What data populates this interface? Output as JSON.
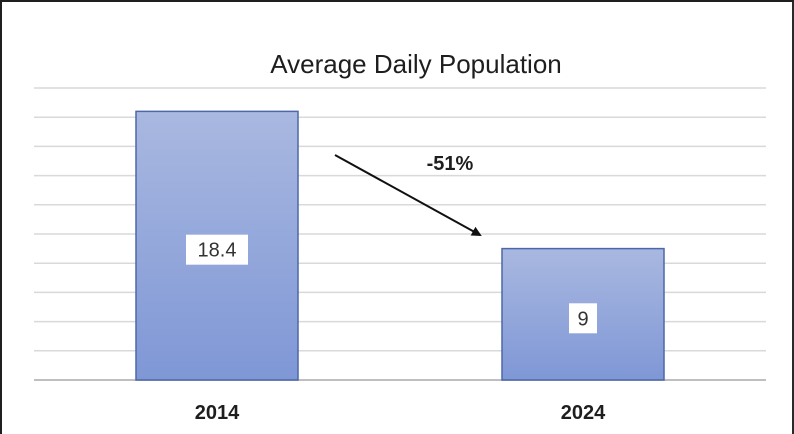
{
  "chart_data": {
    "type": "bar",
    "title": "Average Daily Population",
    "categories": [
      "2014",
      "2024"
    ],
    "values": [
      18.4,
      9
    ],
    "data_labels": [
      "18.4",
      "9"
    ],
    "xlabel": "",
    "ylabel": "",
    "ylim": [
      0,
      20
    ],
    "grid": true,
    "legend": "none",
    "annotation": {
      "text": "-51%",
      "from_category": "2014",
      "to_category": "2024",
      "arrow": true
    },
    "colors": {
      "bar_top": "#a9b8e0",
      "bar_bottom": "#7f97d6",
      "bar_border": "#4d68a8",
      "grid": "#d9d9d9",
      "axis": "#bfbfbf",
      "text": "#1e1e1e"
    }
  }
}
